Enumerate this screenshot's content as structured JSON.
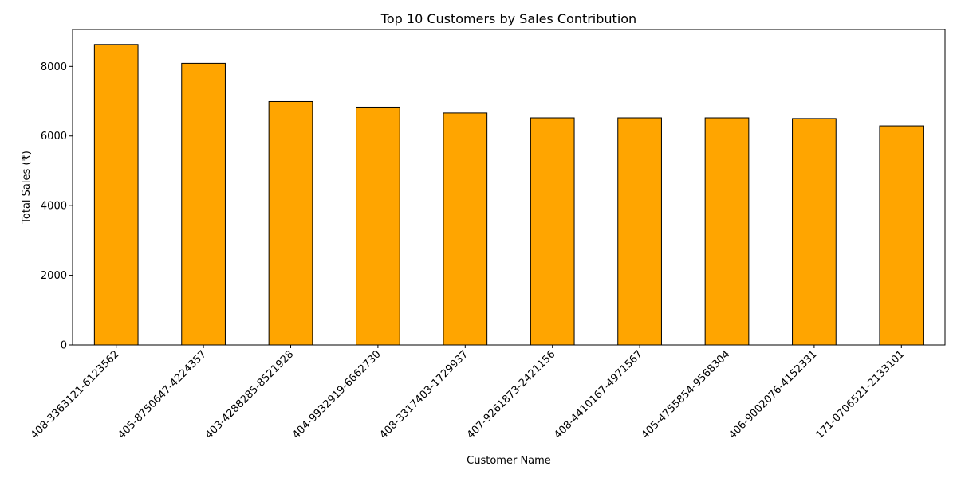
{
  "chart_data": {
    "type": "bar",
    "title": "Top 10 Customers by Sales Contribution",
    "xlabel": "Customer Name",
    "ylabel": "Total Sales (₹)",
    "categories": [
      "408-3363121-6123562",
      "405-8750647-4224357",
      "403-4288285-8521928",
      "404-9932919-6662730",
      "408-3317403-1729937",
      "407-9261873-2421156",
      "408-4410167-4971567",
      "405-4755854-9568304",
      "406-9002076-4152331",
      "171-0706521-2133101"
    ],
    "values": [
      8630,
      8090,
      6990,
      6830,
      6660,
      6520,
      6520,
      6520,
      6500,
      6290
    ],
    "ylim": [
      0,
      9060
    ],
    "yticks": [
      0,
      2000,
      4000,
      6000,
      8000
    ],
    "bar_color": "#ffa500",
    "bar_edge_color": "#000000",
    "grid": false
  }
}
